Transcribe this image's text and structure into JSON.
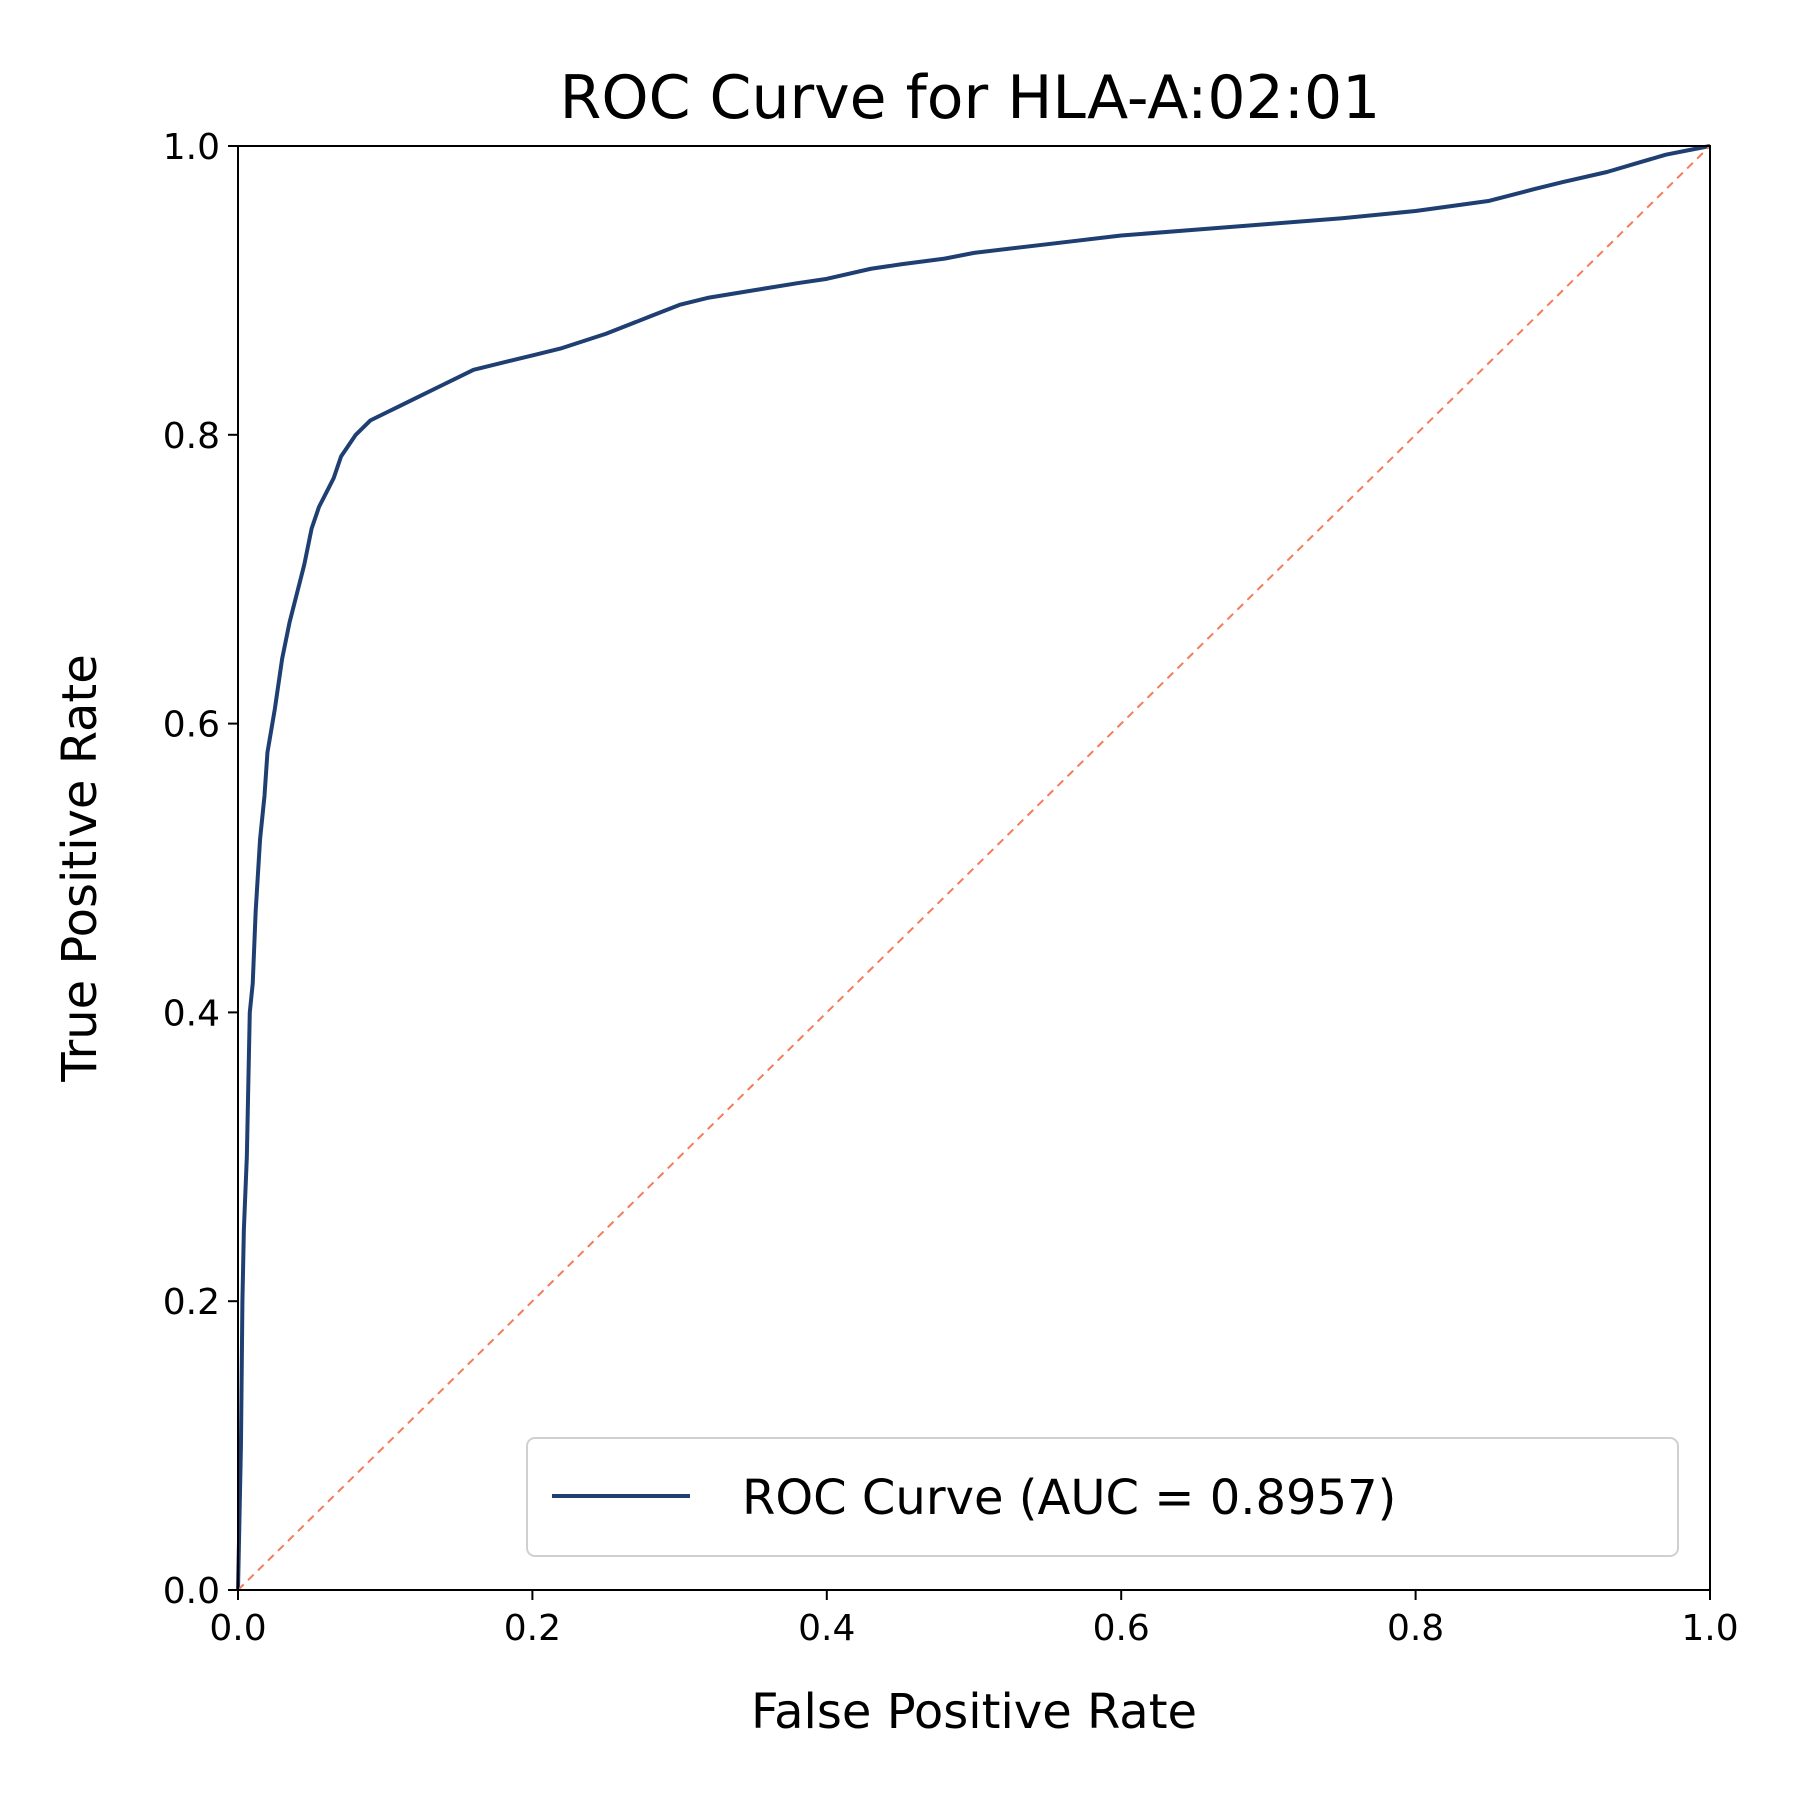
{
  "chart_data": {
    "type": "line",
    "title": "ROC Curve for HLA-A:02:01",
    "xlabel": "False Positive Rate",
    "ylabel": "True Positive Rate",
    "xlim": [
      0.0,
      1.0
    ],
    "ylim": [
      0.0,
      1.0
    ],
    "xticks": [
      "0.0",
      "0.2",
      "0.4",
      "0.6",
      "0.8",
      "1.0"
    ],
    "yticks": [
      "0.0",
      "0.2",
      "0.4",
      "0.6",
      "0.8",
      "1.0"
    ],
    "grid": false,
    "legend_position": "lower-right",
    "series": [
      {
        "name": "ROC Curve (AUC = 0.8957)",
        "color": "#1f3f73",
        "style": "solid",
        "x": [
          0.0,
          0.002,
          0.003,
          0.004,
          0.006,
          0.008,
          0.01,
          0.012,
          0.015,
          0.018,
          0.02,
          0.025,
          0.03,
          0.035,
          0.04,
          0.045,
          0.05,
          0.055,
          0.06,
          0.065,
          0.07,
          0.08,
          0.09,
          0.1,
          0.11,
          0.12,
          0.14,
          0.16,
          0.18,
          0.2,
          0.22,
          0.25,
          0.28,
          0.3,
          0.32,
          0.35,
          0.38,
          0.4,
          0.43,
          0.45,
          0.48,
          0.5,
          0.55,
          0.6,
          0.65,
          0.7,
          0.75,
          0.8,
          0.85,
          0.88,
          0.9,
          0.93,
          0.95,
          0.97,
          0.99,
          1.0
        ],
        "y": [
          0.0,
          0.1,
          0.2,
          0.25,
          0.3,
          0.4,
          0.42,
          0.47,
          0.52,
          0.55,
          0.58,
          0.61,
          0.645,
          0.67,
          0.69,
          0.71,
          0.735,
          0.75,
          0.76,
          0.77,
          0.785,
          0.8,
          0.81,
          0.815,
          0.82,
          0.825,
          0.835,
          0.845,
          0.85,
          0.855,
          0.86,
          0.87,
          0.882,
          0.89,
          0.895,
          0.9,
          0.905,
          0.908,
          0.915,
          0.918,
          0.922,
          0.926,
          0.932,
          0.938,
          0.942,
          0.946,
          0.95,
          0.955,
          0.962,
          0.97,
          0.975,
          0.982,
          0.988,
          0.994,
          0.998,
          1.0
        ]
      },
      {
        "name": "",
        "color": "#f47c5a",
        "style": "dashed",
        "x": [
          0.0,
          1.0
        ],
        "y": [
          0.0,
          1.0
        ]
      }
    ]
  }
}
